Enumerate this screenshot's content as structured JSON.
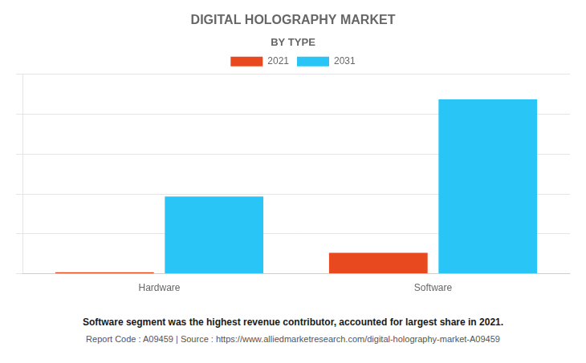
{
  "chart_data": {
    "type": "bar",
    "title": "DIGITAL HOLOGRAPHY MARKET",
    "subtitle": "BY TYPE",
    "categories": [
      "Hardware",
      "Software"
    ],
    "series": [
      {
        "name": "2021",
        "color": "#e8491e",
        "values": [
          0.03,
          0.42
        ]
      },
      {
        "name": "2031",
        "color": "#29c5f6",
        "values": [
          1.55,
          3.5
        ]
      }
    ],
    "ylim": [
      0,
      4.0
    ],
    "yticks": [
      0,
      0.8,
      1.6,
      2.4,
      3.2,
      4.0
    ],
    "grid": true,
    "tick_labels": "x",
    "legend": "top",
    "annotations": [
      "Software segment was the highest revenue contributor, accounted for largest share in 2021.",
      "Report Code : A09459  |  Source : https://www.alliedmarketresearch.com/digital-holography-market-A09459"
    ]
  }
}
